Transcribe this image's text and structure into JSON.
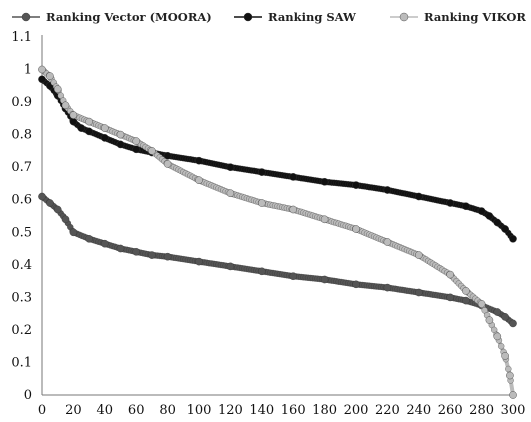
{
  "chart_data": {
    "type": "line",
    "title": "",
    "xlabel": "",
    "ylabel": "",
    "xlim": [
      0,
      300
    ],
    "ylim": [
      0,
      1.1
    ],
    "x_ticks": [
      "0",
      "20",
      "40",
      "60",
      "80",
      "100",
      "120",
      "140",
      "160",
      "180",
      "200",
      "220",
      "240",
      "260",
      "280",
      "300"
    ],
    "y_ticks": [
      "0",
      "0.1",
      "0.2",
      "0.3",
      "0.4",
      "0.5",
      "0.6",
      "0.7",
      "0.8",
      "0.9",
      "1",
      "1.1"
    ],
    "grid": false,
    "legend_position": "top",
    "series": [
      {
        "name": "Ranking Vector (MOORA)",
        "color": "#555555",
        "x": [
          0,
          5,
          10,
          15,
          20,
          30,
          40,
          50,
          60,
          70,
          80,
          100,
          120,
          140,
          160,
          180,
          200,
          220,
          240,
          260,
          270,
          280,
          290,
          295,
          300
        ],
        "y": [
          0.61,
          0.59,
          0.57,
          0.54,
          0.5,
          0.48,
          0.465,
          0.45,
          0.44,
          0.43,
          0.425,
          0.41,
          0.395,
          0.38,
          0.365,
          0.355,
          0.34,
          0.33,
          0.315,
          0.3,
          0.29,
          0.275,
          0.255,
          0.24,
          0.22
        ]
      },
      {
        "name": "Ranking SAW",
        "color": "#111111",
        "x": [
          0,
          5,
          10,
          15,
          20,
          25,
          30,
          40,
          50,
          60,
          70,
          80,
          100,
          120,
          140,
          160,
          180,
          200,
          220,
          240,
          260,
          270,
          280,
          285,
          290,
          295,
          300
        ],
        "y": [
          0.97,
          0.95,
          0.92,
          0.88,
          0.84,
          0.82,
          0.81,
          0.79,
          0.77,
          0.755,
          0.745,
          0.735,
          0.72,
          0.7,
          0.685,
          0.67,
          0.655,
          0.645,
          0.63,
          0.61,
          0.59,
          0.58,
          0.565,
          0.55,
          0.53,
          0.51,
          0.48
        ]
      },
      {
        "name": "Ranking VIKOR",
        "color": "#bbbbbb",
        "x": [
          0,
          5,
          10,
          15,
          20,
          30,
          40,
          50,
          60,
          70,
          80,
          100,
          120,
          140,
          160,
          180,
          200,
          220,
          240,
          260,
          270,
          280,
          285,
          290,
          295,
          298,
          300
        ],
        "y": [
          1.0,
          0.98,
          0.94,
          0.89,
          0.86,
          0.84,
          0.82,
          0.8,
          0.78,
          0.75,
          0.71,
          0.66,
          0.62,
          0.59,
          0.57,
          0.54,
          0.51,
          0.47,
          0.43,
          0.37,
          0.32,
          0.28,
          0.23,
          0.18,
          0.12,
          0.06,
          0.0
        ]
      }
    ]
  }
}
